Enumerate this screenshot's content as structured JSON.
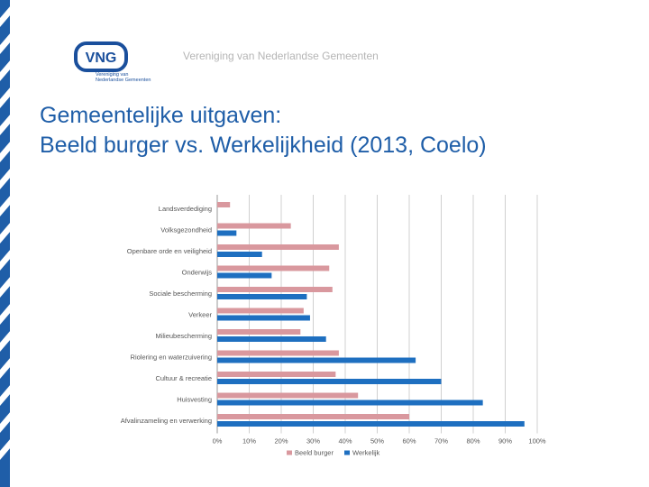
{
  "header": {
    "organization": "Vereniging van Nederlandse Gemeenten"
  },
  "logo": {
    "mark_text": "VNG",
    "sub_line1": "Vereniging van",
    "sub_line2": "Nederlandse Gemeenten"
  },
  "slide": {
    "title_line1": "Gemeentelijke uitgaven:",
    "title_line2": "Beeld burger vs. Werkelijkheid (2013, Coelo)"
  },
  "colors": {
    "brand_blue": "#1f5ea8",
    "series_beeld": "#d9989e",
    "series_werkelijk": "#1e6fc0"
  },
  "chart_data": {
    "type": "bar",
    "orientation": "horizontal",
    "categories": [
      "Landsverdediging",
      "Volksgezondheid",
      "Openbare orde en veiligheid",
      "Onderwijs",
      "Sociale bescherming",
      "Verkeer",
      "Milieubescherming",
      "Riolering en waterzuivering",
      "Cultuur & recreatie",
      "Huisvesting",
      "Afvalinzameling en verwerking"
    ],
    "series": [
      {
        "name": "Beeld burger",
        "values": [
          4,
          23,
          38,
          35,
          36,
          27,
          26,
          38,
          37,
          44,
          60
        ]
      },
      {
        "name": "Werkelijk",
        "values": [
          0,
          6,
          14,
          17,
          28,
          29,
          34,
          62,
          70,
          83,
          96
        ]
      }
    ],
    "xlim": [
      0,
      100
    ],
    "xticks": [
      "0%",
      "10%",
      "20%",
      "30%",
      "40%",
      "50%",
      "60%",
      "70%",
      "80%",
      "90%",
      "100%"
    ],
    "grid": true,
    "legend": "bottom-center"
  }
}
